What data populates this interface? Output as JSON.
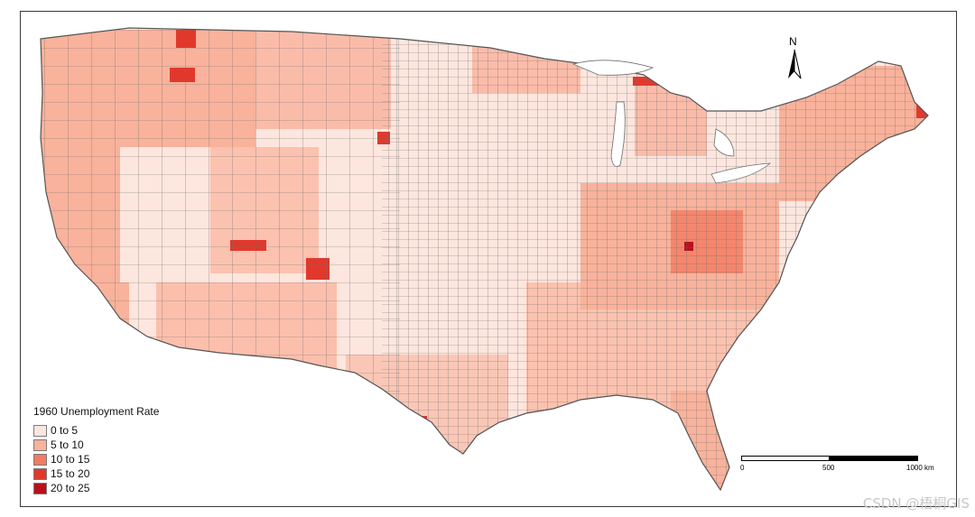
{
  "legend": {
    "title": "1960 Unemployment Rate",
    "classes": [
      {
        "label": "0 to 5",
        "color": "#fde6de"
      },
      {
        "label": "5 to 10",
        "color": "#f9b29b"
      },
      {
        "label": "10 to 15",
        "color": "#f27b62"
      },
      {
        "label": "15 to 20",
        "color": "#e1382c"
      },
      {
        "label": "20 to 25",
        "color": "#b8101b"
      }
    ]
  },
  "north_arrow": {
    "label": "N"
  },
  "scale_bar": {
    "labels": [
      "0",
      "500",
      "1000 km"
    ]
  },
  "map": {
    "outline_color": "#6e6e6e",
    "county_regions": [
      {
        "name": "pacific-northwest",
        "class": 1
      },
      {
        "name": "california",
        "class": 1
      },
      {
        "name": "great-basin",
        "class": 0
      },
      {
        "name": "northern-rockies",
        "class": 1
      },
      {
        "name": "southwest",
        "class": 0
      },
      {
        "name": "great-plains",
        "class": 0
      },
      {
        "name": "upper-midwest",
        "class": 1
      },
      {
        "name": "midwest",
        "class": 0
      },
      {
        "name": "appalachia",
        "class": 2
      },
      {
        "name": "southeast",
        "class": 1
      },
      {
        "name": "northeast",
        "class": 1
      },
      {
        "name": "texas",
        "class": 0
      },
      {
        "name": "florida",
        "class": 1
      }
    ]
  },
  "watermark": "CSDN @梧桐GIS"
}
